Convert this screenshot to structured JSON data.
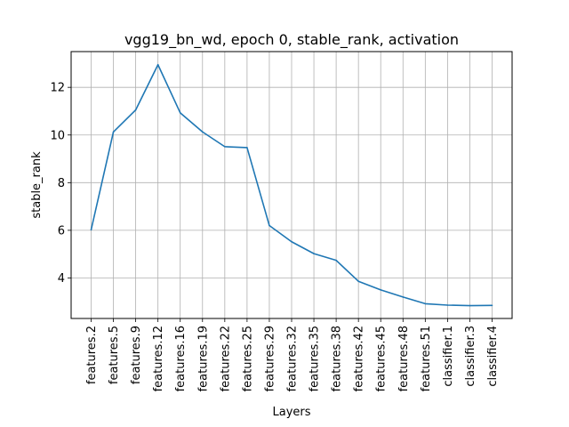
{
  "chart_data": {
    "type": "line",
    "title": "vgg19_bn_wd, epoch 0, stable_rank, activation",
    "xlabel": "Layers",
    "ylabel": "stable_rank",
    "categories": [
      "features.2",
      "features.5",
      "features.9",
      "features.12",
      "features.16",
      "features.19",
      "features.22",
      "features.25",
      "features.29",
      "features.32",
      "features.35",
      "features.38",
      "features.42",
      "features.45",
      "features.48",
      "features.51",
      "classifier.1",
      "classifier.3",
      "classifier.4"
    ],
    "series": [
      {
        "values": [
          6.02,
          10.13,
          11.05,
          12.95,
          10.93,
          10.13,
          9.51,
          9.47,
          6.2,
          5.52,
          5.02,
          4.74,
          3.86,
          3.5,
          3.2,
          2.92,
          2.86,
          2.84,
          2.85
        ],
        "color": "#1f77b4"
      }
    ],
    "yticks": [
      4,
      6,
      8,
      10,
      12
    ],
    "ylim": [
      2.3,
      13.5
    ],
    "grid": true
  }
}
